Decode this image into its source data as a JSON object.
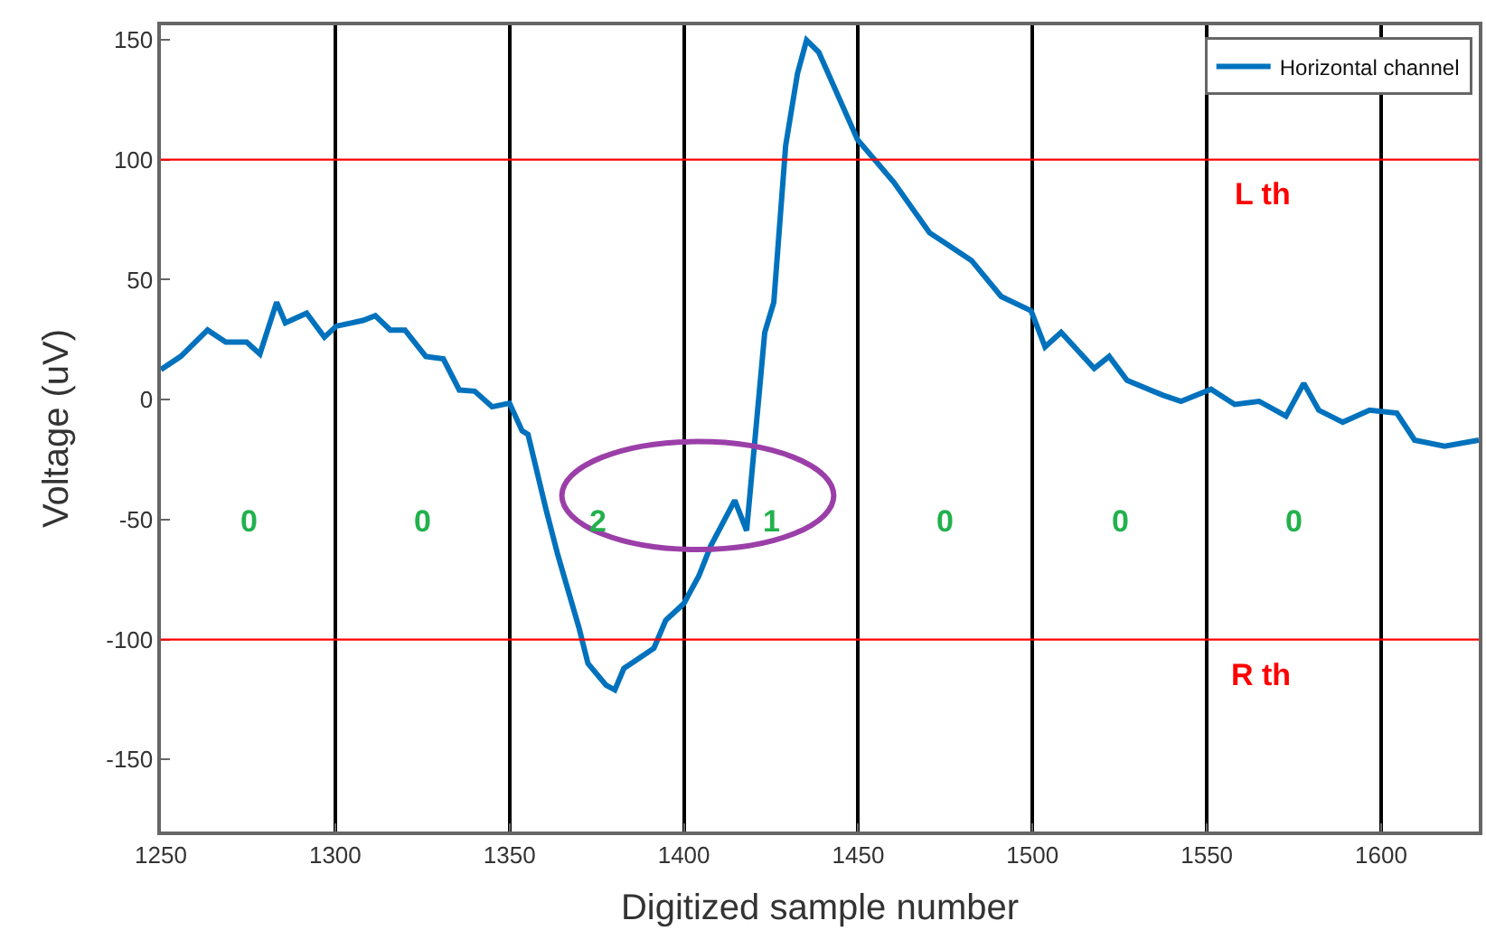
{
  "chart_data": {
    "type": "line",
    "xlabel": "Digitized sample number",
    "ylabel": "Voltage (uV)",
    "xlim": [
      1250,
      1628
    ],
    "ylim": [
      -180,
      156
    ],
    "xticks": [
      1250,
      1300,
      1350,
      1400,
      1450,
      1500,
      1550,
      1600
    ],
    "yticks": [
      -150,
      -100,
      -50,
      0,
      50,
      100,
      150
    ],
    "grid": "x",
    "legend": "top right",
    "line_style": "solid",
    "marker": "none",
    "series": [
      {
        "name": "Horizontal channel",
        "color": "#0072bd",
        "x": [
          1250,
          1255.7,
          1263.4,
          1268.6,
          1274.6,
          1278.4,
          1283.2,
          1285.7,
          1291.8,
          1296.9,
          1300.3,
          1308,
          1311.5,
          1315.8,
          1320,
          1326,
          1331,
          1335.6,
          1340,
          1345,
          1350,
          1353.6,
          1355.3,
          1360.5,
          1363.9,
          1369.9,
          1372.5,
          1377.7,
          1380.2,
          1382.8,
          1386.3,
          1391.4,
          1394.8,
          1400,
          1404.3,
          1407.7,
          1414.6,
          1418,
          1423.2,
          1425.8,
          1429.2,
          1432.6,
          1435.2,
          1438.7,
          1449.8,
          1460.2,
          1470.5,
          1474.7,
          1482.5,
          1491,
          1499.6,
          1503.6,
          1508.2,
          1517.7,
          1522,
          1527.1,
          1537.5,
          1542.6,
          1551.2,
          1558,
          1565,
          1572.7,
          1577.8,
          1582.1,
          1589,
          1596.7,
          1604.5,
          1609.6,
          1618.2,
          1628
        ],
        "values": [
          12.5,
          18,
          29,
          24,
          24,
          19,
          40.6,
          32,
          36,
          26,
          30.6,
          33,
          35,
          29,
          29,
          18,
          17,
          4,
          3.5,
          -3,
          -1.5,
          -13,
          -14.5,
          -46,
          -65,
          -95,
          -110,
          -119,
          -121,
          -112,
          -108.6,
          -103.6,
          -92,
          -85,
          -73.5,
          -61,
          -42,
          -54.6,
          28,
          40.6,
          105.9,
          136,
          149.8,
          144.8,
          108.4,
          90.6,
          69.5,
          65.5,
          58,
          43,
          37,
          22,
          28,
          13,
          18,
          8,
          1.8,
          -0.7,
          4.3,
          -2,
          -0.7,
          -6.9,
          6.8,
          -4.4,
          -9.4,
          -4.4,
          -5.6,
          -16.9,
          -19.4,
          -16.9
        ]
      }
    ],
    "ref_lines": [
      {
        "axis": "y",
        "value": 100,
        "label": "L th",
        "color": "#ff0000"
      },
      {
        "axis": "y",
        "value": -100,
        "label": "R th",
        "color": "#ff0000"
      }
    ],
    "annotations": [
      "0",
      "0",
      "2",
      "1",
      "0",
      "0",
      "0"
    ]
  }
}
